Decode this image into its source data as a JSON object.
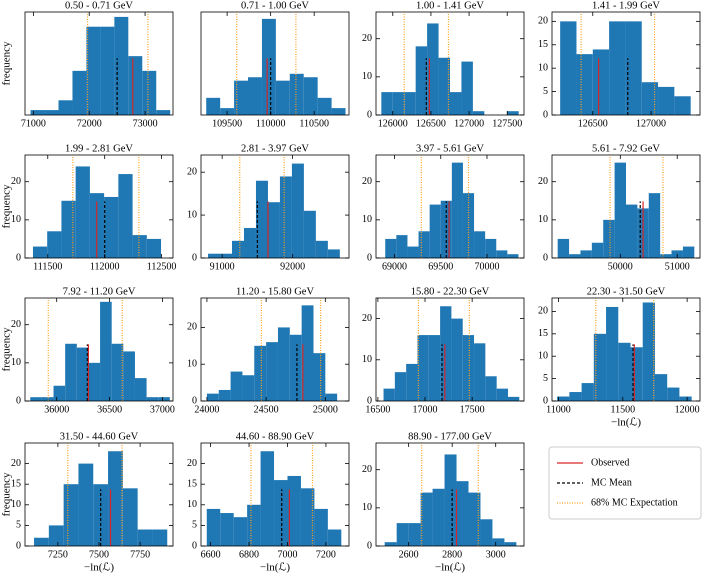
{
  "legend": {
    "entries": [
      {
        "key": "observed",
        "name": "Observed",
        "color": "#d62728",
        "dash": "none"
      },
      {
        "key": "mc_mean",
        "name": "MC Mean",
        "color": "#000000",
        "dash": "3,2"
      },
      {
        "key": "mc_lower",
        "name": "68% MC Expectation",
        "color": "#ff9f1c",
        "dash": "1,1.5"
      }
    ]
  },
  "chart_data": [
    {
      "type": "histogram",
      "title": "0.50 - 0.71 GeV",
      "ylabel": "frequency",
      "color": "#1f77b4",
      "bins": [
        70950,
        71200,
        71450,
        71700,
        71950,
        72200,
        72450,
        72700,
        72950,
        73200,
        73450
      ],
      "counts": [
        1,
        1,
        3,
        9,
        18,
        18,
        20,
        12,
        9,
        1
      ],
      "observed": 72780,
      "mc_mean": 72500,
      "mc_lower": 71970,
      "mc_upper": 73050,
      "xlim": [
        70850,
        73500
      ],
      "xticks": [
        71000,
        72000,
        73000
      ],
      "ylim": [
        0,
        21
      ]
    },
    {
      "type": "histogram",
      "title": "0.71 - 1.00 GeV",
      "color": "#1f77b4",
      "bins": [
        109260,
        109420,
        109580,
        109740,
        109900,
        110060,
        110220,
        110380,
        110540,
        110700,
        110860
      ],
      "counts": [
        5,
        2,
        10,
        11,
        28,
        10,
        12,
        11,
        5,
        2
      ],
      "observed": 109960,
      "mc_mean": 110000,
      "mc_lower": 109610,
      "mc_upper": 110290,
      "xlim": [
        109200,
        110900
      ],
      "xticks": [
        109500,
        110000,
        110500
      ],
      "ylim": [
        0,
        30
      ]
    },
    {
      "type": "histogram",
      "title": "1.00 - 1.41 GeV",
      "color": "#1f77b4",
      "bins": [
        125850,
        126000,
        126150,
        126300,
        126450,
        126600,
        126750,
        126900,
        127050,
        127200,
        127350,
        127500,
        127650
      ],
      "counts": [
        6,
        6,
        6,
        18,
        24,
        15,
        6,
        14,
        1,
        0,
        0,
        1
      ],
      "observed": 126480,
      "mc_mean": 126440,
      "mc_lower": 126150,
      "mc_upper": 126730,
      "xlim": [
        125780,
        127720
      ],
      "xticks": [
        126000,
        126500,
        127000,
        127500
      ],
      "ylim": [
        0,
        27
      ],
      "yticks": [
        0,
        10,
        20
      ]
    },
    {
      "type": "histogram",
      "title": "1.41 - 1.99 GeV",
      "color": "#1f77b4",
      "bins": [
        126220,
        126360,
        126500,
        126640,
        126780,
        126920,
        127060,
        127200,
        127340
      ],
      "counts": [
        20,
        13,
        14,
        20,
        20,
        7,
        6,
        4
      ],
      "observed": 126550,
      "mc_mean": 126800,
      "mc_lower": 126400,
      "mc_upper": 127030,
      "xlim": [
        126150,
        127420
      ],
      "xticks": [
        126500,
        127000
      ],
      "ylim": [
        0,
        22
      ],
      "yticks": [
        0,
        5,
        10,
        15,
        20
      ]
    },
    {
      "type": "histogram",
      "title": "1.99 - 2.81 GeV",
      "ylabel": "frequency",
      "color": "#1f77b4",
      "bins": [
        111370,
        111495,
        111620,
        111745,
        111870,
        111995,
        112120,
        112245,
        112370,
        112495
      ],
      "counts": [
        3,
        7,
        15,
        24,
        17,
        16,
        22,
        6,
        5
      ],
      "observed": 111930,
      "mc_mean": 112000,
      "mc_lower": 111720,
      "mc_upper": 112300,
      "xlim": [
        111300,
        112600
      ],
      "xticks": [
        111500,
        112000,
        112500
      ],
      "ylim": [
        0,
        27
      ],
      "yticks": [
        0,
        10,
        20
      ]
    },
    {
      "type": "histogram",
      "title": "2.81 - 3.97 GeV",
      "color": "#1f77b4",
      "bins": [
        90800,
        90970,
        91140,
        91310,
        91480,
        91650,
        91820,
        91990,
        92160,
        92330,
        92500,
        92670
      ],
      "counts": [
        1,
        1,
        4,
        7,
        18,
        13,
        19,
        22,
        11,
        4,
        2
      ],
      "observed": 91650,
      "mc_mean": 91500,
      "mc_lower": 91250,
      "mc_upper": 91880,
      "xlim": [
        90700,
        92800
      ],
      "xticks": [
        91000,
        92000
      ],
      "ylim": [
        0,
        24
      ],
      "yticks": [
        0,
        10,
        20
      ]
    },
    {
      "type": "histogram",
      "title": "3.97 - 5.61 GeV",
      "color": "#1f77b4",
      "bins": [
        68900,
        69020,
        69140,
        69260,
        69380,
        69500,
        69620,
        69740,
        69860,
        69980,
        70100,
        70220,
        70340
      ],
      "counts": [
        5,
        6,
        3,
        7,
        14,
        15,
        25,
        17,
        7,
        5,
        2,
        1
      ],
      "observed": 69590,
      "mc_mean": 69560,
      "mc_lower": 69290,
      "mc_upper": 69800,
      "xlim": [
        68800,
        70400
      ],
      "xticks": [
        69000,
        69500,
        70000
      ],
      "ylim": [
        0,
        27
      ],
      "yticks": [
        0,
        10,
        20
      ]
    },
    {
      "type": "histogram",
      "title": "5.61 - 7.92 GeV",
      "color": "#1f77b4",
      "bins": [
        48900,
        49100,
        49300,
        49500,
        49700,
        49900,
        50100,
        50300,
        50500,
        50700,
        50900,
        51100,
        51300
      ],
      "counts": [
        5,
        1,
        2,
        4,
        10,
        25,
        14,
        13,
        17,
        1,
        2,
        3
      ],
      "observed": 50400,
      "mc_mean": 50350,
      "mc_lower": 49820,
      "mc_upper": 50750,
      "xlim": [
        48800,
        51400
      ],
      "xticks": [
        50000,
        51000
      ],
      "ylim": [
        0,
        27
      ],
      "yticks": [
        0,
        10,
        20
      ]
    },
    {
      "type": "histogram",
      "title": "7.92 - 11.20 GeV",
      "ylabel": "frequency",
      "color": "#1f77b4",
      "bins": [
        35750,
        35860,
        35970,
        36080,
        36190,
        36300,
        36410,
        36520,
        36630,
        36740,
        36850,
        36960,
        37070
      ],
      "counts": [
        1,
        1,
        4,
        15,
        14,
        10,
        26,
        15,
        13,
        6,
        1,
        1
      ],
      "observed": 36300,
      "mc_mean": 36290,
      "mc_lower": 35920,
      "mc_upper": 36620,
      "xlim": [
        35700,
        37100
      ],
      "xticks": [
        36000,
        36500,
        37000
      ],
      "ylim": [
        0,
        27
      ],
      "yticks": [
        0,
        10,
        20
      ]
    },
    {
      "type": "histogram",
      "title": "11.20 - 15.80 GeV",
      "color": "#1f77b4",
      "bins": [
        24000,
        24100,
        24200,
        24300,
        24400,
        24500,
        24600,
        24700,
        24800,
        24900,
        25000,
        25100
      ],
      "counts": [
        2,
        3,
        8,
        7,
        15,
        16,
        20,
        18,
        26,
        13,
        2
      ],
      "observed": 24810,
      "mc_mean": 24760,
      "mc_lower": 24460,
      "mc_upper": 24960,
      "xlim": [
        23950,
        25200
      ],
      "xticks": [
        24000,
        24500,
        25000
      ],
      "ylim": [
        0,
        28
      ],
      "yticks": [
        0,
        10,
        20
      ]
    },
    {
      "type": "histogram",
      "title": "15.80 - 22.30 GeV",
      "color": "#1f77b4",
      "bins": [
        16560,
        16680,
        16800,
        16920,
        17040,
        17160,
        17280,
        17400,
        17520,
        17640,
        17760,
        17880,
        18000
      ],
      "counts": [
        3,
        7,
        9,
        16,
        16,
        23,
        20,
        16,
        14,
        6,
        3,
        1
      ],
      "observed": 17210,
      "mc_mean": 17180,
      "mc_lower": 16930,
      "mc_upper": 17470,
      "xlim": [
        16480,
        18050
      ],
      "xticks": [
        16500,
        17000,
        17500
      ],
      "ylim": [
        0,
        25
      ],
      "yticks": [
        0,
        10,
        20
      ]
    },
    {
      "type": "histogram",
      "title": "22.30 - 31.50 GeV",
      "xlabel": "−ln(ℒ)",
      "color": "#1f77b4",
      "bins": [
        10990,
        11085,
        11180,
        11275,
        11370,
        11465,
        11560,
        11655,
        11750,
        11845,
        11940,
        12035
      ],
      "counts": [
        1,
        2,
        4,
        15,
        21,
        13,
        12,
        22,
        6,
        3,
        1
      ],
      "observed": 11590,
      "mc_mean": 11580,
      "mc_lower": 11290,
      "mc_upper": 11740,
      "xlim": [
        10950,
        12100
      ],
      "xticks": [
        11000,
        11500,
        12000
      ],
      "ylim": [
        0,
        23
      ],
      "yticks": [
        0,
        5,
        10,
        15,
        20
      ]
    },
    {
      "type": "histogram",
      "title": "31.50 - 44.60 GeV",
      "ylabel": "frequency",
      "xlabel": "−ln(ℒ)",
      "color": "#1f77b4",
      "bins": [
        7105,
        7195,
        7285,
        7375,
        7465,
        7555,
        7645,
        7735,
        7825,
        7915
      ],
      "counts": [
        2,
        5,
        15,
        20,
        15,
        23,
        14,
        4,
        4
      ],
      "observed": 7570,
      "mc_mean": 7510,
      "mc_lower": 7310,
      "mc_upper": 7640,
      "xlim": [
        7050,
        7950
      ],
      "xticks": [
        7250,
        7500,
        7750
      ],
      "ylim": [
        0,
        25
      ],
      "yticks": [
        0,
        5,
        10,
        15,
        20
      ]
    },
    {
      "type": "histogram",
      "title": "44.60 - 88.90 GeV",
      "xlabel": "−ln(ℒ)",
      "color": "#1f77b4",
      "bins": [
        6580,
        6650,
        6720,
        6790,
        6860,
        6930,
        7000,
        7070,
        7140,
        7210,
        7280
      ],
      "counts": [
        9,
        8,
        7,
        10,
        23,
        16,
        17,
        14,
        9,
        4
      ],
      "observed": 7010,
      "mc_mean": 6970,
      "mc_lower": 6810,
      "mc_upper": 7130,
      "xlim": [
        6550,
        7320
      ],
      "xticks": [
        6600,
        6800,
        7000,
        7200
      ],
      "ylim": [
        0,
        25
      ],
      "yticks": [
        0,
        5,
        10,
        15,
        20
      ]
    },
    {
      "type": "histogram",
      "title": "88.90 - 177.00 GeV",
      "xlabel": "−ln(ℒ)",
      "color": "#1f77b4",
      "bins": [
        2490,
        2545,
        2600,
        2655,
        2710,
        2765,
        2820,
        2875,
        2930,
        2985,
        3040,
        3095
      ],
      "counts": [
        1,
        6,
        6,
        14,
        15,
        24,
        17,
        14,
        7,
        2,
        1
      ],
      "observed": 2820,
      "mc_mean": 2800,
      "mc_lower": 2660,
      "mc_upper": 2920,
      "xlim": [
        2450,
        3130
      ],
      "xticks": [
        2600,
        2800,
        3000
      ],
      "ylim": [
        0,
        27
      ],
      "yticks": [
        0,
        10,
        20
      ]
    }
  ]
}
